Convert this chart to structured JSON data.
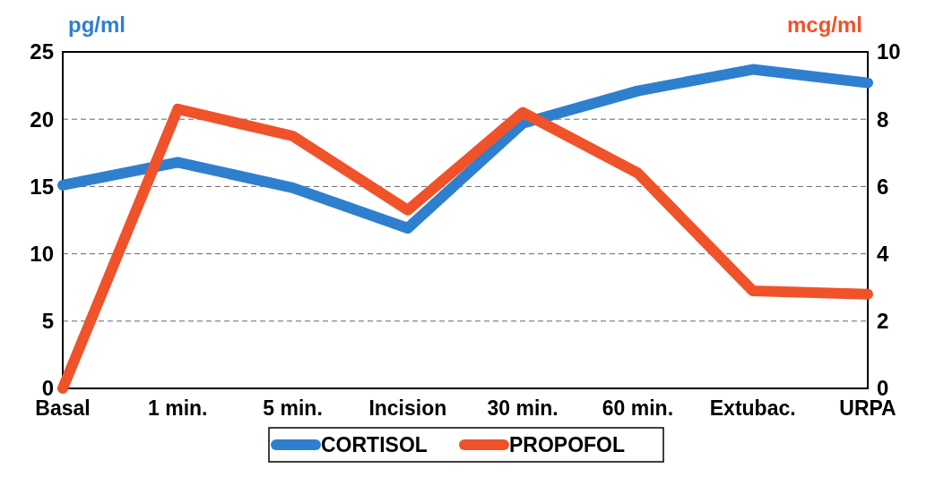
{
  "chart_data": {
    "type": "line",
    "ylabel": "pg/ml",
    "y2label": "mcg/ml",
    "categories": [
      "Basal",
      "1 min.",
      "5 min.",
      "Incision",
      "30 min.",
      "60 min.",
      "Extubac.",
      "URPA"
    ],
    "series": [
      {
        "name": "CORTISOL",
        "color": "#2f7fcf",
        "values": [
          15.1,
          16.8,
          14.9,
          11.9,
          19.7,
          22.1,
          23.7,
          22.7
        ]
      },
      {
        "name": "PROPOFOL",
        "color": "#f0522a",
        "axis": "y2",
        "values": [
          0,
          8.3,
          7.5,
          5.3,
          8.2,
          6.4,
          2.9,
          2.8
        ]
      }
    ],
    "ylim": [
      0,
      25
    ],
    "yticks": [
      0,
      5,
      10,
      15,
      20,
      25
    ],
    "y2lim": [
      0,
      10
    ],
    "y2ticks": [
      0,
      2,
      4,
      6,
      8,
      10
    ],
    "grid": "y",
    "line_style": "solid",
    "marker": "none",
    "legend": "bottom"
  }
}
